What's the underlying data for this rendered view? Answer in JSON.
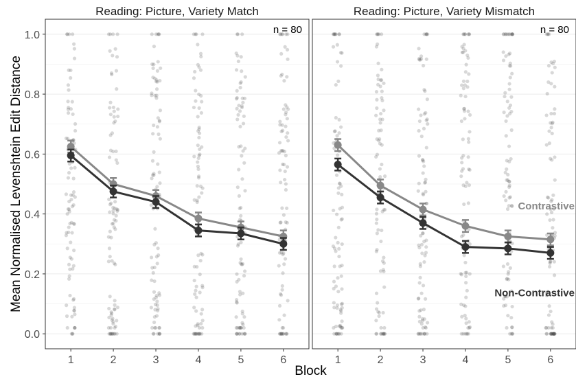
{
  "chart_data": {
    "type": "line",
    "ylabel": "Mean Normalised Levenshtein Edit Distance",
    "xlabel": "Block",
    "ylim": [
      0,
      1.0
    ],
    "yticks": [
      0.0,
      0.2,
      0.4,
      0.6,
      0.8,
      1.0
    ],
    "ytick_labels": [
      "0.0",
      "0.2",
      "0.4",
      "0.6",
      "0.8",
      "1.0"
    ],
    "xlim": [
      0.4,
      6.6
    ],
    "xticks": [
      1,
      2,
      3,
      4,
      5,
      6
    ],
    "xtick_labels": [
      "1",
      "2",
      "3",
      "4",
      "5",
      "6"
    ],
    "grid": true,
    "series_colors": {
      "Contrastive": "#888888",
      "Non-Contrastive": "#333333",
      "points": "#4d4d4d"
    },
    "panels": [
      {
        "title": "Reading: Picture, Variety Match",
        "n_label": "n =  80",
        "series": [
          {
            "name": "Contrastive",
            "x": [
              1,
              2,
              3,
              4,
              5,
              6
            ],
            "values": [
              0.625,
              0.5,
              0.46,
              0.385,
              0.355,
              0.325
            ],
            "errors": [
              0.02,
              0.02,
              0.02,
              0.02,
              0.02,
              0.02
            ]
          },
          {
            "name": "Non-Contrastive",
            "x": [
              1,
              2,
              3,
              4,
              5,
              6
            ],
            "values": [
              0.595,
              0.475,
              0.44,
              0.345,
              0.335,
              0.3
            ],
            "errors": [
              0.02,
              0.02,
              0.02,
              0.02,
              0.02,
              0.02
            ]
          }
        ],
        "show_series_labels": false
      },
      {
        "title": "Reading: Picture, Variety Mismatch",
        "n_label": "n =  80",
        "series": [
          {
            "name": "Contrastive",
            "x": [
              1,
              2,
              3,
              4,
              5,
              6
            ],
            "values": [
              0.63,
              0.495,
              0.415,
              0.36,
              0.325,
              0.315
            ],
            "errors": [
              0.02,
              0.02,
              0.02,
              0.02,
              0.02,
              0.02
            ]
          },
          {
            "name": "Non-Contrastive",
            "x": [
              1,
              2,
              3,
              4,
              5,
              6
            ],
            "values": [
              0.565,
              0.455,
              0.37,
              0.29,
              0.285,
              0.27
            ],
            "errors": [
              0.02,
              0.02,
              0.02,
              0.02,
              0.02,
              0.02
            ]
          }
        ],
        "show_series_labels": true,
        "series_labels": {
          "Contrastive": "Contrastive",
          "Non-Contrastive": "Non-Contrastive"
        }
      }
    ]
  }
}
